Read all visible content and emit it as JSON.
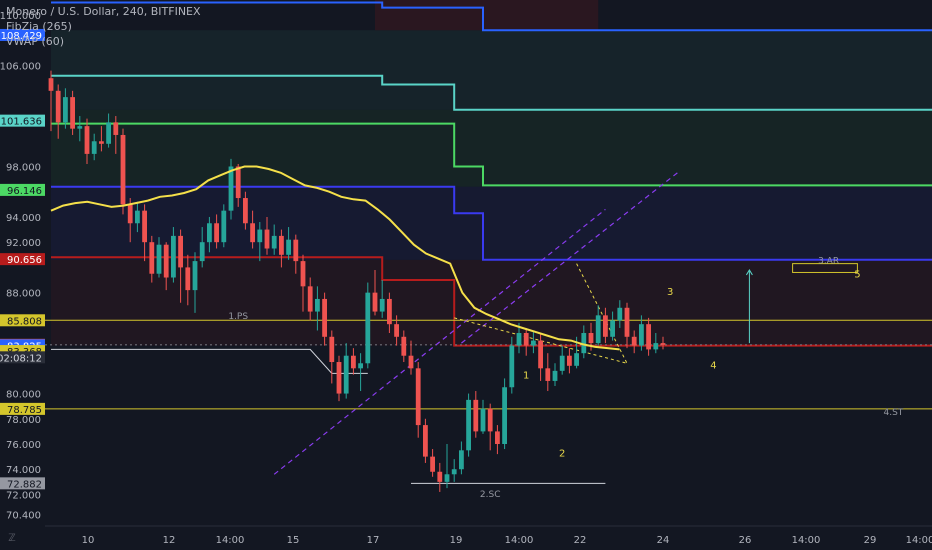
{
  "legend": {
    "title": "Monero / U.S. Dollar, 240, BITFINEX",
    "ind1": "FibZia (265)",
    "ind2": "VWAP (60)"
  },
  "branding": {
    "logo_icon": "tradingview-logo-icon"
  },
  "colors": {
    "background": "#131722",
    "up": "#26a69a",
    "down": "#ef5350",
    "vwap": "#f5e04a",
    "fib_top": "#2962ff",
    "fib_1": "#5ad4c8",
    "fib_2": "#4cd964",
    "fib_mid": "#3a3af0",
    "fib_low": "#b71c1c",
    "level": "#d4c62c",
    "channel": "#8a3cf0",
    "wedge": "#e8d84a",
    "axis_text": "#b2b5be"
  },
  "chart_data": {
    "type": "candlestick",
    "title": "Monero / U.S. Dollar, 240, BITFINEX",
    "ylim": [
      69.5,
      111.2
    ],
    "y_ticks": [
      "110.000",
      "106.000",
      "98.000",
      "94.000",
      "92.000",
      "88.000",
      "80.000",
      "78.000",
      "76.000",
      "74.000",
      "72.000",
      "70.400"
    ],
    "x_ticks": [
      "10",
      "12",
      "14:00",
      "15",
      "17",
      "19",
      "14:00",
      "22",
      "24",
      "26",
      "14:00",
      "29",
      "14:00"
    ],
    "price_tags": [
      {
        "value": 108.429,
        "label": "108.429",
        "color": "#2962ff"
      },
      {
        "value": 101.636,
        "label": "101.636",
        "color": "#5ad4c8"
      },
      {
        "value": 96.146,
        "label": "96.146",
        "color": "#4cd964"
      },
      {
        "value": 90.656,
        "label": "90.656",
        "color": "#b71c1c"
      },
      {
        "value": 85.808,
        "label": "85.808",
        "color": "#d4c62c"
      },
      {
        "value": 83.863,
        "label": "83.863",
        "color": "#ef5350"
      },
      {
        "value": 83.825,
        "label": "83.825",
        "color": "#2962ff"
      },
      {
        "value": 83.368,
        "label": "83.368",
        "color": "#d4c62c"
      },
      {
        "value": 78.785,
        "label": "78.785",
        "color": "#d4c62c"
      },
      {
        "value": 72.882,
        "label": "72.882",
        "color": "#9598a1"
      }
    ],
    "countdown": "02:08:12",
    "candles": [
      [
        105.0,
        104.0,
        105.6,
        100.8
      ],
      [
        104.0,
        101.5,
        104.5,
        100.2
      ],
      [
        101.5,
        103.5,
        104.2,
        101.0
      ],
      [
        103.5,
        101.0,
        104.0,
        100.5
      ],
      [
        101.0,
        101.2,
        102.0,
        100.0
      ],
      [
        101.2,
        99.0,
        101.8,
        98.2
      ],
      [
        99.0,
        100.0,
        100.6,
        98.5
      ],
      [
        100.0,
        99.8,
        101.2,
        99.2
      ],
      [
        99.8,
        101.5,
        102.2,
        99.5
      ],
      [
        101.5,
        100.5,
        102.0,
        99.0
      ],
      [
        100.5,
        95.0,
        101.0,
        94.2
      ],
      [
        95.0,
        93.5,
        95.5,
        92.0
      ],
      [
        93.5,
        94.5,
        95.2,
        92.8
      ],
      [
        94.5,
        92.0,
        95.0,
        90.5
      ],
      [
        92.0,
        89.5,
        92.5,
        88.8
      ],
      [
        89.5,
        91.8,
        92.4,
        89.2
      ],
      [
        91.8,
        89.2,
        92.0,
        88.2
      ],
      [
        89.2,
        92.5,
        93.2,
        88.8
      ],
      [
        92.5,
        90.0,
        93.0,
        87.2
      ],
      [
        90.0,
        88.2,
        91.0,
        87.0
      ],
      [
        88.2,
        90.5,
        91.2,
        86.4
      ],
      [
        90.5,
        92.0,
        93.2,
        90.0
      ],
      [
        92.0,
        93.5,
        94.0,
        91.2
      ],
      [
        93.5,
        92.0,
        94.2,
        91.5
      ],
      [
        92.0,
        94.5,
        95.0,
        91.6
      ],
      [
        94.5,
        98.0,
        98.6,
        93.8
      ],
      [
        98.0,
        95.5,
        98.2,
        94.8
      ],
      [
        95.5,
        93.5,
        96.0,
        93.0
      ],
      [
        93.5,
        92.0,
        94.5,
        91.5
      ],
      [
        92.0,
        93.0,
        93.6,
        90.5
      ],
      [
        93.0,
        91.5,
        94.0,
        91.0
      ],
      [
        91.5,
        92.5,
        93.4,
        91.0
      ],
      [
        92.5,
        91.0,
        93.0,
        90.0
      ],
      [
        91.0,
        92.2,
        93.2,
        90.6
      ],
      [
        92.2,
        90.5,
        92.6,
        89.5
      ],
      [
        90.5,
        88.5,
        91.0,
        86.5
      ],
      [
        88.5,
        86.5,
        89.2,
        85.8
      ],
      [
        86.5,
        87.5,
        88.5,
        85.0
      ],
      [
        87.5,
        84.5,
        88.0,
        83.8
      ],
      [
        84.5,
        82.5,
        85.0,
        80.8
      ],
      [
        82.5,
        80.0,
        83.0,
        79.4
      ],
      [
        80.0,
        83.0,
        84.0,
        79.6
      ],
      [
        83.0,
        82.0,
        83.6,
        81.5
      ],
      [
        82.0,
        82.4,
        83.2,
        80.2
      ],
      [
        82.4,
        88.0,
        88.8,
        82.0
      ],
      [
        88.0,
        86.5,
        89.8,
        86.2
      ],
      [
        86.5,
        87.5,
        89.0,
        86.0
      ],
      [
        87.5,
        85.5,
        88.0,
        84.8
      ],
      [
        85.5,
        84.5,
        86.2,
        83.8
      ],
      [
        84.5,
        83.0,
        85.0,
        82.5
      ],
      [
        83.0,
        82.0,
        84.2,
        81.5
      ],
      [
        82.0,
        77.5,
        82.5,
        76.5
      ],
      [
        77.5,
        75.0,
        78.0,
        74.5
      ],
      [
        75.0,
        73.8,
        75.6,
        73.4
      ],
      [
        73.8,
        73.0,
        74.5,
        72.2
      ],
      [
        73.0,
        73.6,
        76.0,
        72.5
      ],
      [
        73.6,
        74.0,
        74.8,
        73.0
      ],
      [
        74.0,
        75.5,
        76.2,
        73.6
      ],
      [
        75.5,
        79.5,
        80.0,
        75.0
      ],
      [
        79.5,
        77.0,
        80.2,
        76.5
      ],
      [
        77.0,
        78.8,
        79.5,
        76.8
      ],
      [
        78.8,
        77.0,
        79.2,
        75.5
      ],
      [
        77.0,
        76.0,
        77.5,
        75.2
      ],
      [
        76.0,
        80.5,
        81.2,
        75.6
      ],
      [
        80.5,
        83.8,
        84.5,
        80.0
      ],
      [
        83.8,
        84.8,
        85.6,
        83.2
      ],
      [
        84.8,
        83.8,
        85.2,
        83.0
      ],
      [
        83.8,
        84.2,
        85.0,
        83.2
      ],
      [
        84.2,
        82.0,
        84.8,
        81.0
      ],
      [
        82.0,
        81.0,
        83.2,
        80.2
      ],
      [
        81.0,
        81.8,
        82.4,
        80.6
      ],
      [
        81.8,
        83.0,
        83.8,
        81.5
      ],
      [
        83.0,
        82.2,
        83.6,
        81.6
      ],
      [
        82.2,
        83.2,
        84.5,
        82.0
      ],
      [
        83.2,
        84.8,
        85.4,
        82.8
      ],
      [
        84.8,
        84.0,
        85.6,
        83.4
      ],
      [
        84.0,
        86.2,
        87.0,
        83.8
      ],
      [
        86.2,
        84.5,
        86.8,
        84.0
      ],
      [
        84.5,
        85.8,
        86.5,
        84.2
      ],
      [
        85.8,
        86.8,
        87.4,
        85.2
      ],
      [
        86.8,
        84.5,
        87.2,
        83.6
      ],
      [
        84.5,
        83.8,
        85.0,
        83.2
      ],
      [
        83.8,
        85.5,
        86.2,
        83.4
      ],
      [
        85.5,
        83.5,
        86.0,
        83.0
      ],
      [
        83.5,
        84.0,
        84.8,
        83.2
      ],
      [
        84.0,
        83.86,
        84.5,
        83.5
      ]
    ],
    "vwap_y": [
      94.5,
      94.9,
      95.1,
      95.2,
      95.0,
      94.8,
      94.9,
      95.1,
      95.3,
      95.6,
      95.7,
      95.9,
      96.2,
      96.9,
      97.3,
      97.7,
      98.0,
      98.0,
      97.8,
      97.5,
      97.0,
      96.5,
      96.3,
      96.0,
      95.6,
      95.4,
      95.3,
      94.6,
      93.8,
      92.8,
      91.8,
      91.1,
      90.7,
      90.3,
      88.0,
      86.8,
      86.3,
      85.9,
      85.5,
      85.2,
      84.9,
      84.6,
      84.3,
      84.2,
      83.9,
      83.7,
      83.6,
      83.5
    ],
    "fib_levels": [
      {
        "name": "top",
        "segments": [
          [
            0,
            111.0
          ],
          [
            46,
            111.0
          ],
          [
            46,
            110.6
          ],
          [
            60,
            110.6
          ],
          [
            60,
            108.8
          ],
          [
            160,
            108.8
          ]
        ]
      },
      {
        "name": "fib_1",
        "segments": [
          [
            0,
            105.2
          ],
          [
            46,
            105.2
          ],
          [
            46,
            104.5
          ],
          [
            56,
            104.5
          ],
          [
            56,
            102.5
          ],
          [
            160,
            102.5
          ]
        ]
      },
      {
        "name": "fib_2",
        "segments": [
          [
            0,
            101.4
          ],
          [
            56,
            101.4
          ],
          [
            56,
            98.0
          ],
          [
            60,
            98.0
          ],
          [
            60,
            96.5
          ],
          [
            160,
            96.5
          ]
        ]
      },
      {
        "name": "fib_mid",
        "segments": [
          [
            0,
            96.4
          ],
          [
            56,
            96.4
          ],
          [
            56,
            94.3
          ],
          [
            60,
            94.3
          ],
          [
            60,
            90.6
          ],
          [
            160,
            90.6
          ]
        ]
      },
      {
        "name": "fib_low",
        "segments": [
          [
            0,
            90.8
          ],
          [
            46,
            90.8
          ],
          [
            46,
            89.0
          ],
          [
            56,
            89.0
          ],
          [
            56,
            83.8
          ],
          [
            160,
            83.8
          ]
        ]
      }
    ],
    "horizontal_levels": [
      85.808,
      78.785
    ],
    "annotations": [
      {
        "text": "1.PS",
        "x": 26,
        "y": 85.9
      },
      {
        "text": "2.SC",
        "x": 61,
        "y": 71.8
      },
      {
        "text": "3.AR",
        "x": 108,
        "y": 90.3
      },
      {
        "text": "4.ST",
        "x": 117,
        "y": 78.3
      },
      {
        "text": "1",
        "x": 66,
        "y": 81.2
      },
      {
        "text": "2",
        "x": 71,
        "y": 75.0
      },
      {
        "text": "3",
        "x": 86,
        "y": 87.8
      },
      {
        "text": "4",
        "x": 92,
        "y": 82.0
      },
      {
        "text": "5",
        "x": 112,
        "y": 89.2
      }
    ]
  }
}
